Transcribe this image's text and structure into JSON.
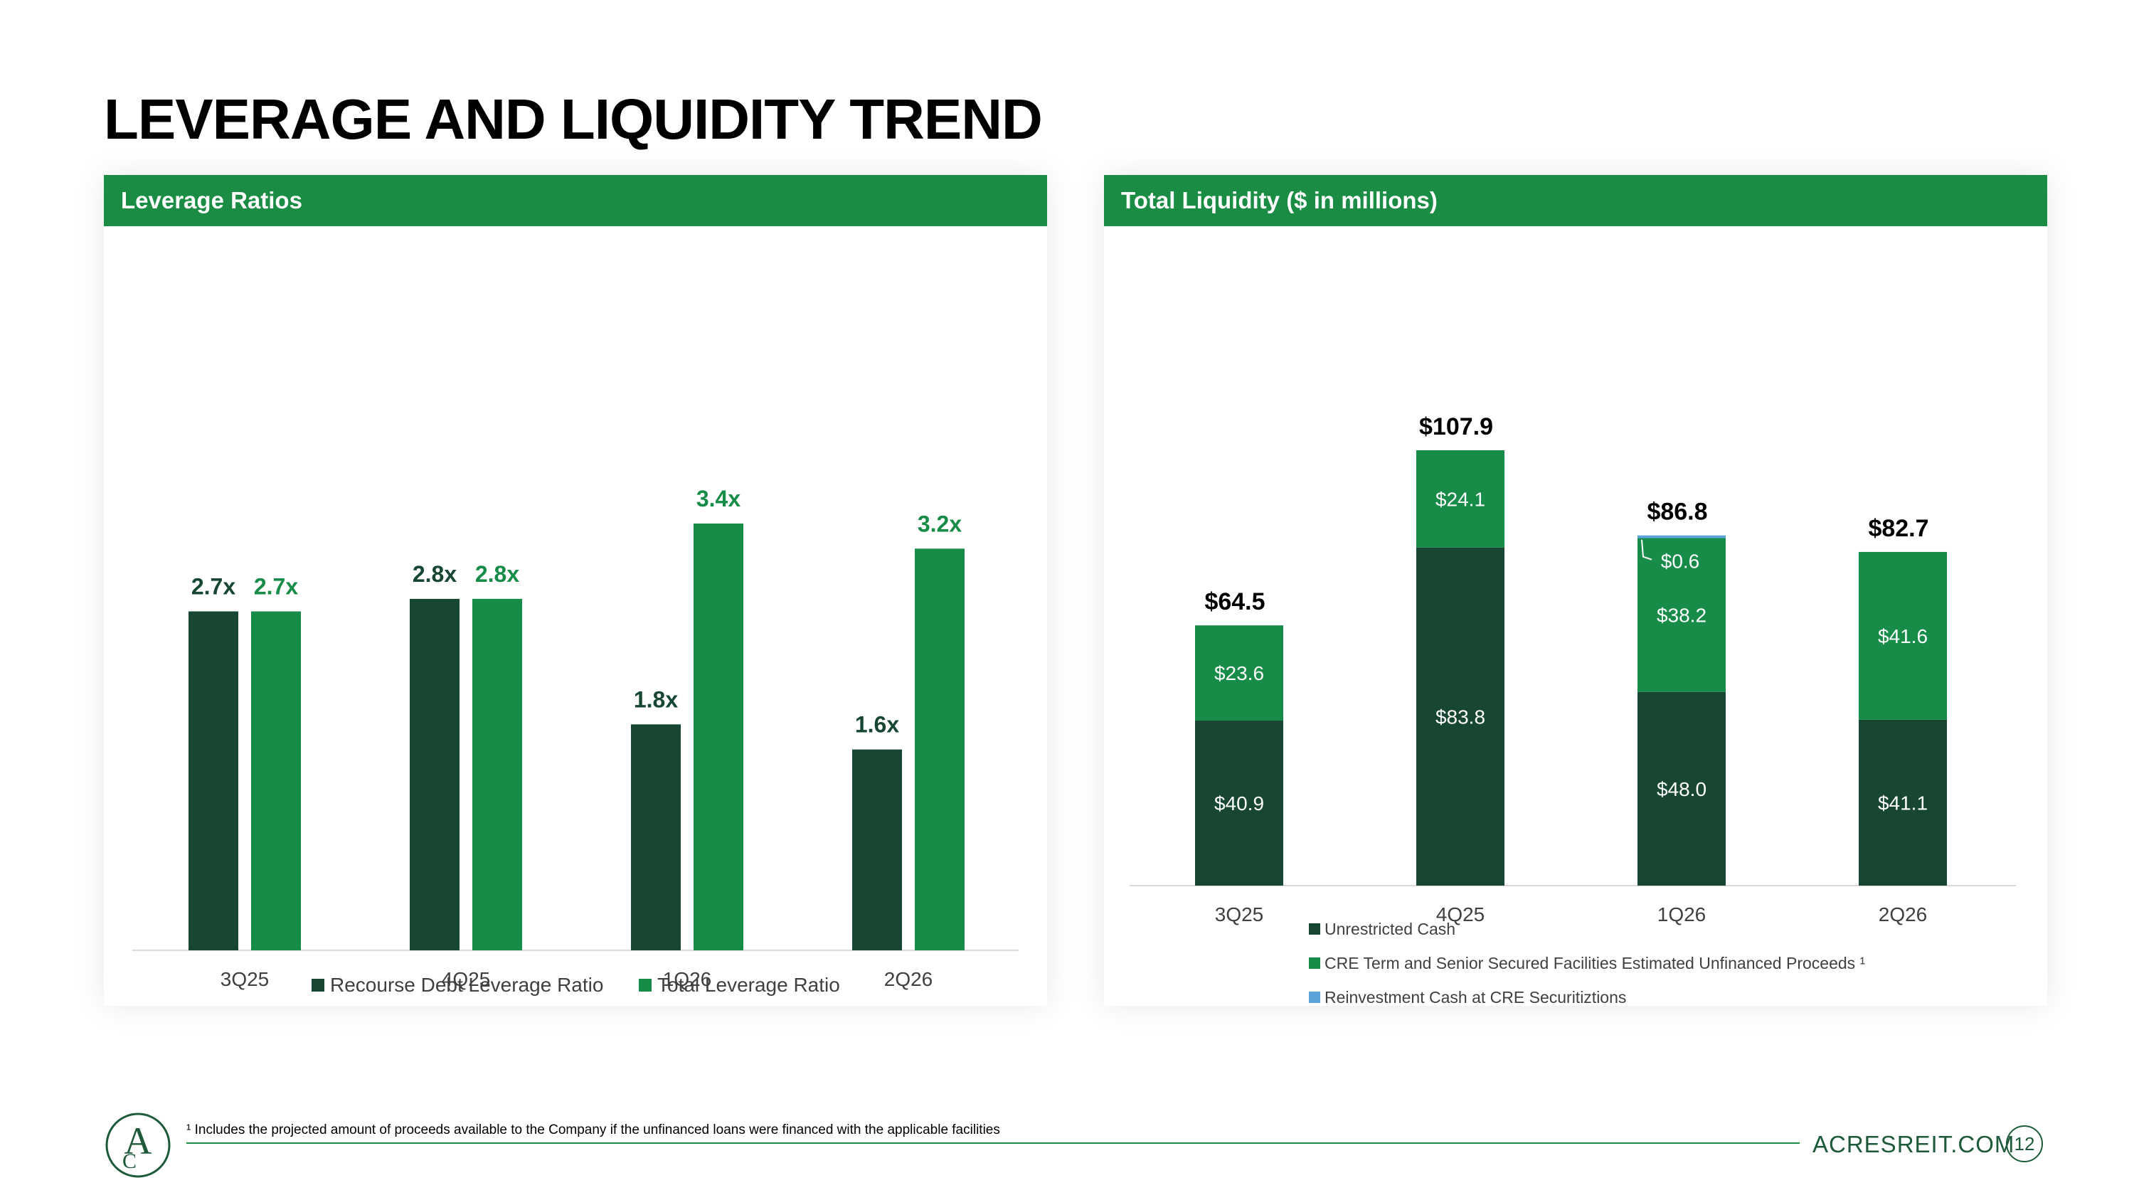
{
  "page": {
    "title": "LEVERAGE AND LIQUIDITY TREND",
    "footnote": "¹ Includes the projected amount of proceeds available to the Company if the unfinanced loans were financed with the applicable facilities",
    "website": "ACRESREIT.COM",
    "page_number": "12",
    "logo_letters": "A C"
  },
  "colors": {
    "dark_green": "#174632",
    "bright_green": "#168c48",
    "header_green": "#1a8c44",
    "light_blue": "#5ba3d9"
  },
  "chart_data": [
    {
      "type": "bar",
      "title": "Leverage Ratios",
      "categories": [
        "3Q25",
        "4Q25",
        "1Q26",
        "2Q26"
      ],
      "series": [
        {
          "name": "Recourse Debt Leverage Ratio",
          "values": [
            2.7,
            2.8,
            1.8,
            1.6
          ],
          "labels": [
            "2.7x",
            "2.8x",
            "1.8x",
            "1.6x"
          ],
          "color": "#174632"
        },
        {
          "name": "Total Leverage Ratio",
          "values": [
            2.7,
            2.8,
            3.4,
            3.2
          ],
          "labels": [
            "2.7x",
            "2.8x",
            "3.4x",
            "3.2x"
          ],
          "color": "#168c48"
        }
      ],
      "ylim": [
        0,
        3.4
      ],
      "grid": false,
      "legend": "bottom"
    },
    {
      "type": "bar",
      "stacked": true,
      "title": "Total Liquidity ($ in millions)",
      "categories": [
        "3Q25",
        "4Q25",
        "1Q26",
        "2Q26"
      ],
      "series": [
        {
          "name": "Unrestricted Cash",
          "values": [
            40.9,
            83.8,
            48.0,
            41.1
          ],
          "labels": [
            "$40.9",
            "$83.8",
            "$48.0",
            "$41.1"
          ],
          "color": "#174632"
        },
        {
          "name": "CRE Term and Senior Secured Facilities Estimated Unfinanced Proceeds ¹",
          "values": [
            23.6,
            24.1,
            38.2,
            41.6
          ],
          "labels": [
            "$23.6",
            "$24.1",
            "$38.2",
            "$41.6"
          ],
          "color": "#168c48"
        },
        {
          "name": "Reinvestment Cash at CRE Securitiztions",
          "values": [
            0,
            0,
            0.6,
            0
          ],
          "labels": [
            "",
            "",
            "$0.6",
            ""
          ],
          "color": "#5ba3d9"
        }
      ],
      "totals": [
        "$64.5",
        "$107.9",
        "$86.8",
        "$82.7"
      ],
      "total_values": [
        64.5,
        107.9,
        86.8,
        82.7
      ],
      "ylim": [
        0,
        107.9
      ],
      "grid": false,
      "legend": "bottom"
    }
  ]
}
